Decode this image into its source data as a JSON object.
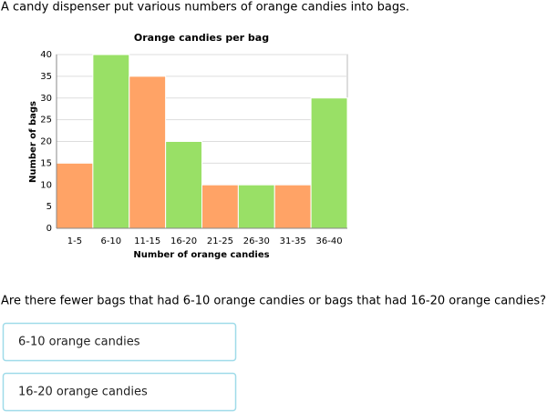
{
  "question": {
    "intro": "A candy dispenser put various numbers of orange candies into bags.",
    "prompt": "Are there fewer bags that had 6-10 orange candies or bags that had 16-20 orange candies?"
  },
  "options": [
    "6-10 orange candies",
    "16-20 orange candies"
  ],
  "chart_data": {
    "type": "bar",
    "title": "Orange candies per bag",
    "x_label": "Number of orange candies",
    "y_label": "Number of bags",
    "categories": [
      "1-5",
      "6-10",
      "11-15",
      "16-20",
      "21-25",
      "26-30",
      "31-35",
      "36-40"
    ],
    "values": [
      15,
      40,
      35,
      20,
      10,
      10,
      10,
      30
    ],
    "colors": [
      "#ffa366",
      "#99e066",
      "#ffa366",
      "#99e066",
      "#ffa366",
      "#99e066",
      "#ffa366",
      "#99e066"
    ],
    "ylim": [
      0,
      40
    ],
    "yticks": [
      0,
      5,
      10,
      15,
      20,
      25,
      30,
      35,
      40
    ],
    "grid": true
  }
}
